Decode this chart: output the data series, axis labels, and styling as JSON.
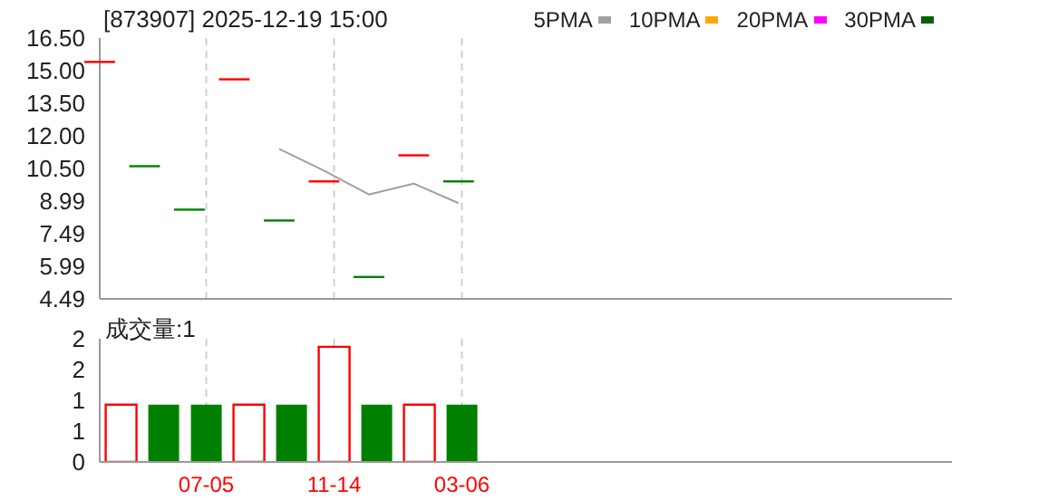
{
  "chart_data": [
    {
      "type": "candlestick",
      "title": "[873907] 2025-12-19 15:00",
      "categories": [
        null,
        null,
        null,
        null,
        null,
        null,
        null,
        null,
        null,
        null,
        null,
        null,
        null,
        null,
        null,
        null,
        null,
        null,
        null,
        null
      ],
      "ohlc": [
        [
          15.4,
          15.4,
          15.4,
          15.4
        ],
        [
          10.6,
          10.6,
          10.6,
          10.6
        ],
        [
          8.6,
          8.6,
          8.6,
          8.6
        ],
        [
          14.6,
          14.6,
          14.6,
          14.6
        ],
        [
          8.1,
          8.1,
          8.1,
          8.1
        ],
        [
          9.9,
          9.9,
          9.9,
          9.9
        ],
        [
          5.5,
          5.5,
          5.5,
          5.5
        ],
        [
          11.1,
          11.1,
          11.1,
          11.1
        ],
        [
          9.9,
          9.9,
          9.9,
          9.9
        ],
        null,
        null,
        null,
        null,
        null,
        null,
        null,
        null,
        null,
        null,
        null
      ],
      "colors": [
        "#ff0000",
        "#008000",
        "#008000",
        "#ff0000",
        "#008000",
        "#ff0000",
        "#008000",
        "#ff0000",
        "#008000",
        null,
        null,
        null,
        null,
        null,
        null,
        null,
        null,
        null,
        null,
        null
      ],
      "series": [
        {
          "name": "5PMA",
          "type": "line",
          "color": "#a0a0a0",
          "values": [
            null,
            null,
            null,
            null,
            11.4,
            10.4,
            9.3,
            9.8,
            8.9,
            null,
            null,
            null,
            null,
            null,
            null,
            null,
            null,
            null,
            null,
            null
          ]
        },
        {
          "name": "10PMA",
          "type": "line",
          "color": "#ffa500",
          "values": [
            null,
            null,
            null,
            null,
            null,
            null,
            null,
            null,
            null,
            null,
            null,
            null,
            null,
            null,
            null,
            null,
            null,
            null,
            null,
            null
          ]
        },
        {
          "name": "20PMA",
          "type": "line",
          "color": "#ff00ff",
          "values": [
            null,
            null,
            null,
            null,
            null,
            null,
            null,
            null,
            null,
            null,
            null,
            null,
            null,
            null,
            null,
            null,
            null,
            null,
            null,
            null
          ]
        },
        {
          "name": "30PMA",
          "type": "line",
          "color": "#006400",
          "values": [
            null,
            null,
            null,
            null,
            null,
            null,
            null,
            null,
            null,
            null,
            null,
            null,
            null,
            null,
            null,
            null,
            null,
            null,
            null,
            null
          ]
        }
      ],
      "ylim": [
        4.49,
        16.5
      ],
      "yticks": [
        4.49,
        5.99,
        7.49,
        8.99,
        {
          "value": 10.5,
          "label": "10.50"
        },
        {
          "value": 12,
          "label": "12.00"
        },
        {
          "value": 13.5,
          "label": "13.50"
        },
        {
          "value": 15,
          "label": "15.00"
        },
        {
          "value": 16.5,
          "label": "16.50"
        }
      ],
      "grid": true,
      "legend": "top right",
      "tick_labels": "y"
    },
    {
      "type": "bar",
      "title": "成交量:1",
      "categories": [
        null,
        null,
        "07-05",
        null,
        null,
        "11-14",
        null,
        null,
        "03-06",
        null,
        null,
        null,
        null,
        null,
        null,
        null,
        null,
        null,
        null,
        null
      ],
      "values": [
        0.93,
        0.93,
        0.93,
        0.93,
        0.93,
        1.87,
        0.93,
        0.93,
        0.93,
        null,
        null,
        null,
        null,
        null,
        null,
        null,
        null,
        null,
        null,
        null
      ],
      "colors": [
        "#ff0000",
        "#008000",
        "#008000",
        "#ff0000",
        "#008000",
        "#ff0000",
        "#008000",
        "#ff0000",
        "#008000",
        null,
        null,
        null,
        null,
        null,
        null,
        null,
        null,
        null,
        null,
        null
      ],
      "ylim": [
        0,
        2
      ],
      "yticks": [
        0,
        {
          "value": 0.5,
          "label": "1"
        },
        1,
        {
          "value": 1.5,
          "label": "2"
        },
        2
      ],
      "grid": true
    }
  ]
}
